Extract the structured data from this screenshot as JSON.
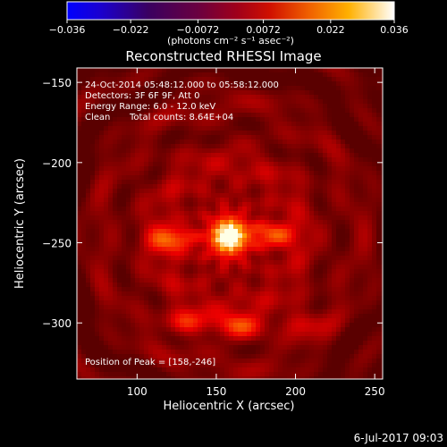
{
  "figure": {
    "title": "Reconstructed RHESSI Image",
    "footer_timestamp": "6-Jul-2017 09:03",
    "colorbar": {
      "ticks": [
        "-0.036",
        "-0.022",
        "-0.0072",
        "0.0072",
        "0.022",
        "0.036"
      ],
      "units_label": "(photons cm⁻² s⁻¹ asec⁻²)",
      "min": -0.036,
      "max": 0.036
    },
    "annotations": {
      "time_range": "24-Oct-2014 05:48:12.000 to 05:58:12.000",
      "detectors": "Detectors: 3F 6F 9F, Att 0",
      "energy_range": "Energy Range: 6.0 - 12.0 keV",
      "algorithm": "Clean",
      "total_counts": "Total counts: 8.64E+04",
      "peak_position": "Position of Peak = [158,-246]"
    },
    "axes": {
      "xlabel": "Heliocentric X (arcsec)",
      "ylabel": "Heliocentric Y (arcsec)",
      "xticks": [
        "100",
        "150",
        "200",
        "250"
      ],
      "yticks": [
        "-150",
        "-200",
        "-250",
        "-300"
      ]
    }
  },
  "chart_data": {
    "type": "heatmap",
    "title": "Reconstructed RHESSI Image",
    "xlabel": "Heliocentric X (arcsec)",
    "ylabel": "Heliocentric Y (arcsec)",
    "xlim": [
      62,
      255
    ],
    "ylim": [
      -335,
      -141
    ],
    "peak": [
      158,
      -246
    ],
    "colormap": "hot",
    "value_range": [
      -0.036,
      0.036
    ],
    "sources": [
      {
        "name": "",
        "x": 158,
        "y": -246,
        "strength": 1.0
      },
      {
        "name": "",
        "x": 122,
        "y": -248,
        "strength": 0.42
      },
      {
        "name": "",
        "x": 186,
        "y": -245,
        "strength": 0.38
      },
      {
        "name": "",
        "x": 132,
        "y": -300,
        "strength": 0.3
      },
      {
        "name": "",
        "x": 165,
        "y": -302,
        "strength": 0.36
      },
      {
        "name": "",
        "x": 205,
        "y": -300,
        "strength": 0.22
      }
    ]
  }
}
